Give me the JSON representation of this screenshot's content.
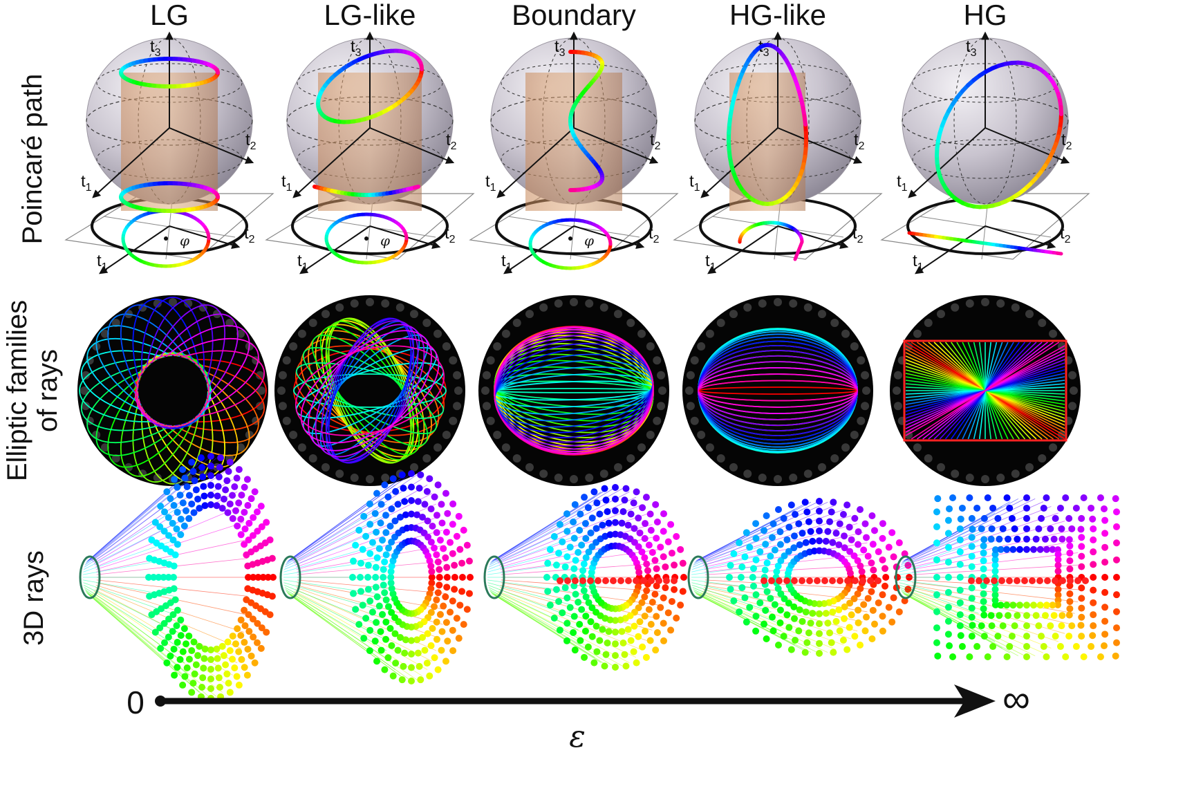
{
  "columns": [
    {
      "key": "lg",
      "title": "LG"
    },
    {
      "key": "lglike",
      "title": "LG-like"
    },
    {
      "key": "boundary",
      "title": "Boundary"
    },
    {
      "key": "hglike",
      "title": "HG-like"
    },
    {
      "key": "hg",
      "title": "HG"
    }
  ],
  "rows": {
    "poincare": {
      "label": "Poincaré path"
    },
    "elliptic": {
      "label_line1": "Elliptic families",
      "label_line2": "of rays"
    },
    "rays3d": {
      "label": "3D rays"
    }
  },
  "axes": {
    "t1": "t",
    "t1_sub": "1",
    "t2": "t",
    "t2_sub": "2",
    "t3": "t",
    "t3_sub": "3",
    "phi": "φ"
  },
  "epsilon_axis": {
    "start": "0",
    "end": "∞",
    "symbol": "ε"
  },
  "colors": {
    "rainbow": [
      "#ff0000",
      "#ff8800",
      "#ffee00",
      "#33dd33",
      "#00dddd",
      "#3344ff",
      "#aa33ff",
      "#ff00aa"
    ]
  }
}
